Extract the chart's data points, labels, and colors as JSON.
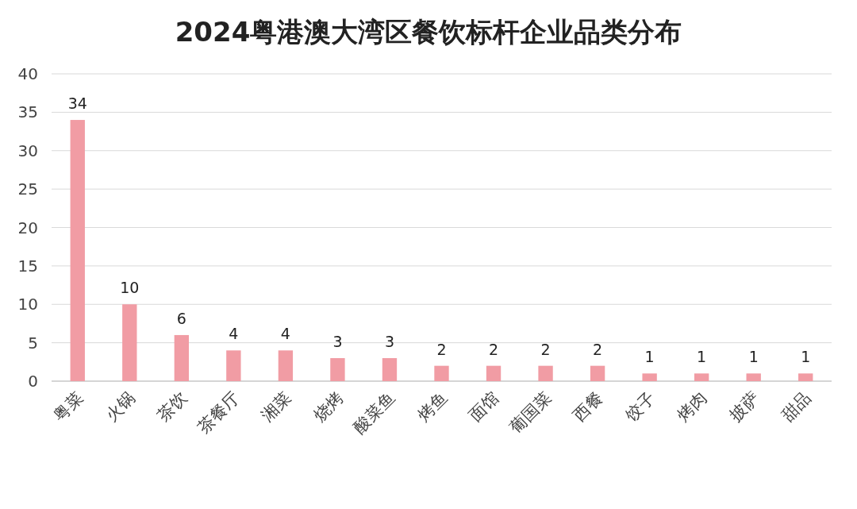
{
  "chart_data": {
    "type": "bar",
    "title": "2024粤港澳大湾区餐饮标杆企业品类分布",
    "categories": [
      "粤菜",
      "火锅",
      "茶饮",
      "茶餐厅",
      "湘菜",
      "烧烤",
      "酸菜鱼",
      "烤鱼",
      "面馆",
      "葡国菜",
      "西餐",
      "饺子",
      "烤肉",
      "披萨",
      "甜品"
    ],
    "values": [
      34,
      10,
      6,
      4,
      4,
      3,
      3,
      2,
      2,
      2,
      2,
      1,
      1,
      1,
      1
    ],
    "color": "#f19ca4",
    "ylim": [
      0,
      40
    ],
    "yticks": [
      0,
      5,
      10,
      15,
      20,
      25,
      30,
      35,
      40
    ],
    "grid": "y",
    "data_labels": true
  }
}
